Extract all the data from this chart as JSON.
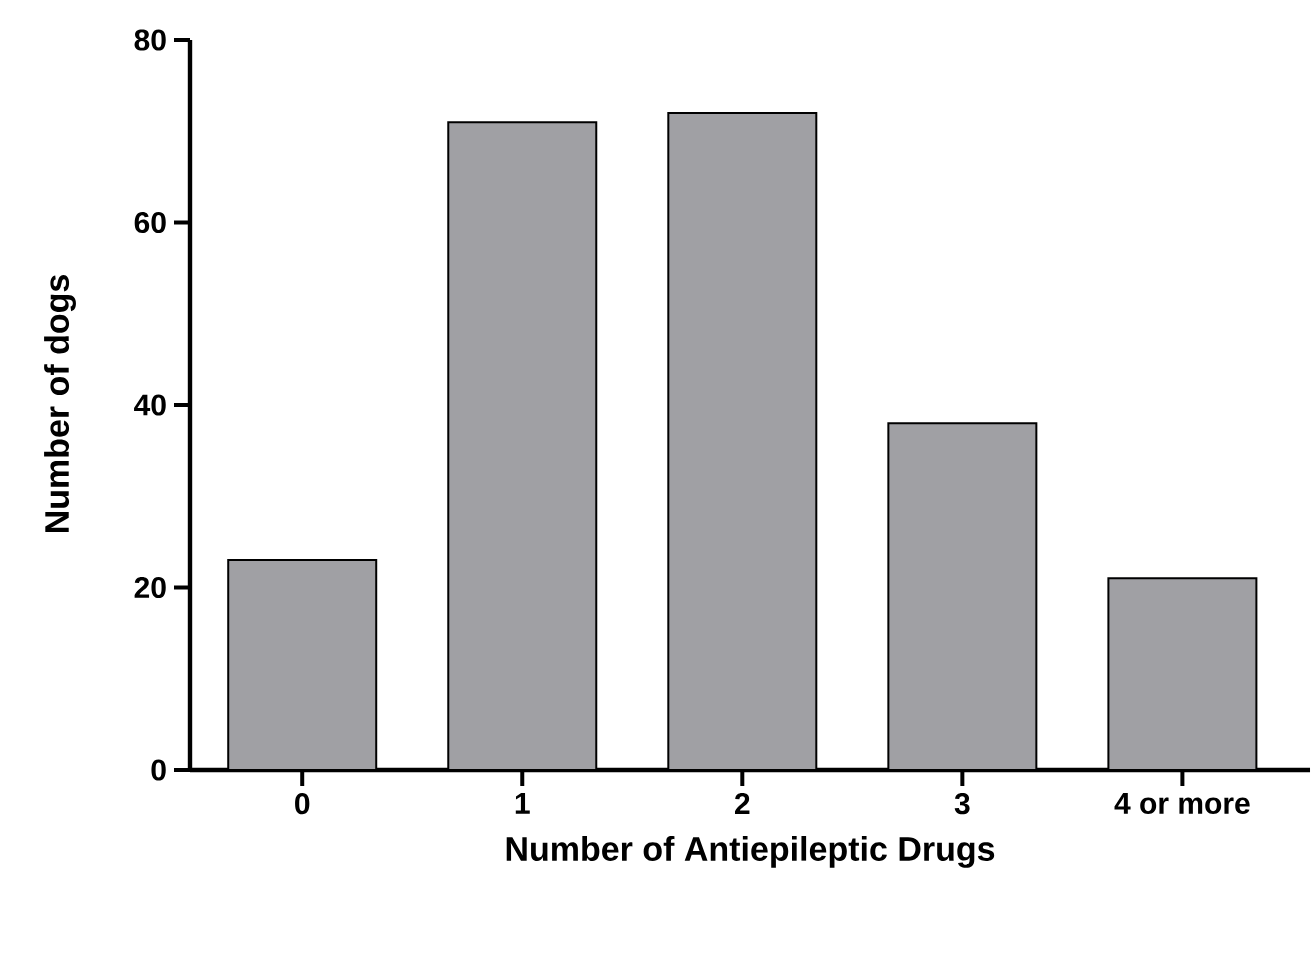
{
  "chart_data": {
    "type": "bar",
    "xlabel": "Number of Antiepileptic Drugs",
    "ylabel": "Number of dogs",
    "categories": [
      "0",
      "1",
      "2",
      "3",
      "4 or more"
    ],
    "values": [
      23,
      71,
      72,
      38,
      21
    ],
    "color": "#a0a0a4",
    "ylim": [
      0,
      80
    ],
    "yticks": [
      0,
      20,
      40,
      60,
      80
    ],
    "grid": false
  }
}
